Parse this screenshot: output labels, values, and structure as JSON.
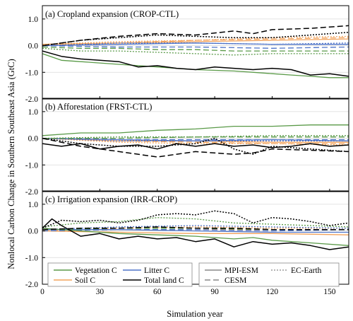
{
  "colors": {
    "Vegetation C": "#5a9a48",
    "Soil C": "#f2a35c",
    "Litter C": "#4f74c8",
    "Total land C": "#000000",
    "grid": "#d9d9d9"
  },
  "chart_data": {
    "type": "line",
    "ylabel": "Nonlocal Carbon Change in Southern Southeast Asia (GtC)",
    "xlabel": "Simulation year",
    "xlim": [
      0,
      160
    ],
    "xticks": [
      "0",
      "30",
      "60",
      "90",
      "120",
      "150"
    ],
    "xtick_values": [
      0,
      30,
      60,
      90,
      120,
      150
    ],
    "ylim": [
      -2.0,
      1.5
    ],
    "yticks": [
      "-2.0",
      "-1.0",
      "0.0",
      "1.0"
    ],
    "ytick_values": [
      -2.0,
      -1.0,
      0.0,
      1.0
    ],
    "grid": "horizontal",
    "legend": {
      "variables": [
        "Vegetation C",
        "Soil C",
        "Litter C",
        "Total land C"
      ],
      "models": [
        {
          "name": "MPI-ESM",
          "style": "solid"
        },
        {
          "name": "EC-Earth",
          "style": "dotted"
        },
        {
          "name": "CESM",
          "style": "dashed"
        }
      ],
      "location": "bottom of panel (c)"
    },
    "panels": [
      {
        "title": "(a) Cropland expansion (CROP-CTL)",
        "series": [
          {
            "name": "Vegetation C",
            "model": "MPI-ESM",
            "x": [
              0,
              10,
              20,
              40,
              60,
              80,
              100,
              120,
              130,
              140,
              150,
              160
            ],
            "y": [
              -0.3,
              -0.55,
              -0.6,
              -0.7,
              -0.8,
              -0.9,
              -0.95,
              -1.05,
              -1.1,
              -1.15,
              -1.2,
              -1.2
            ]
          },
          {
            "name": "Vegetation C",
            "model": "EC-Earth",
            "x": [
              0,
              20,
              40,
              60,
              80,
              100,
              120,
              140,
              160
            ],
            "y": [
              -0.1,
              -0.2,
              -0.2,
              -0.25,
              -0.3,
              -0.35,
              -0.3,
              -0.3,
              -0.3
            ]
          },
          {
            "name": "Vegetation C",
            "model": "CESM",
            "x": [
              0,
              20,
              40,
              60,
              80,
              100,
              120,
              140,
              160
            ],
            "y": [
              -0.05,
              -0.1,
              -0.1,
              -0.15,
              -0.15,
              -0.2,
              -0.2,
              -0.2,
              -0.2
            ]
          },
          {
            "name": "Soil C",
            "model": "MPI-ESM",
            "x": [
              0,
              40,
              80,
              120,
              160
            ],
            "y": [
              0.05,
              0.1,
              0.15,
              0.2,
              0.25
            ]
          },
          {
            "name": "Soil C",
            "model": "EC-Earth",
            "x": [
              0,
              40,
              80,
              120,
              160
            ],
            "y": [
              0.05,
              0.15,
              0.2,
              0.3,
              0.35
            ]
          },
          {
            "name": "Soil C",
            "model": "CESM",
            "x": [
              0,
              40,
              80,
              120,
              160
            ],
            "y": [
              0.0,
              0.1,
              0.2,
              0.25,
              0.3
            ]
          },
          {
            "name": "Litter C",
            "model": "MPI-ESM",
            "x": [
              0,
              40,
              80,
              120,
              160
            ],
            "y": [
              0.0,
              0.05,
              0.1,
              0.05,
              0.05
            ]
          },
          {
            "name": "Litter C",
            "model": "EC-Earth",
            "x": [
              0,
              40,
              80,
              120,
              160
            ],
            "y": [
              0.0,
              0.1,
              0.1,
              0.05,
              0.1
            ]
          },
          {
            "name": "Litter C",
            "model": "CESM",
            "x": [
              0,
              40,
              80,
              120,
              160
            ],
            "y": [
              0.0,
              -0.05,
              -0.05,
              -0.1,
              -0.05
            ]
          },
          {
            "name": "Total land C",
            "model": "MPI-ESM",
            "x": [
              0,
              10,
              20,
              30,
              40,
              50,
              60,
              70,
              80,
              90,
              100,
              110,
              120,
              130,
              140,
              150,
              160
            ],
            "y": [
              -0.2,
              -0.4,
              -0.5,
              -0.55,
              -0.6,
              -0.8,
              -0.75,
              -0.85,
              -0.9,
              -0.8,
              -0.85,
              -0.9,
              -0.85,
              -0.9,
              -1.1,
              -1.05,
              -1.15
            ]
          },
          {
            "name": "Total land C",
            "model": "EC-Earth",
            "x": [
              0,
              20,
              40,
              60,
              80,
              100,
              120,
              140,
              160
            ],
            "y": [
              0.0,
              0.2,
              0.3,
              0.4,
              0.35,
              0.3,
              0.3,
              0.4,
              0.5
            ]
          },
          {
            "name": "Total land C",
            "model": "CESM",
            "x": [
              0,
              20,
              40,
              60,
              80,
              100,
              110,
              120,
              140,
              160
            ],
            "y": [
              0.0,
              0.2,
              0.35,
              0.45,
              0.4,
              0.55,
              0.45,
              0.6,
              0.65,
              0.75
            ]
          }
        ]
      },
      {
        "title": "(b) Afforestation (FRST-CTL)",
        "series": [
          {
            "name": "Vegetation C",
            "model": "MPI-ESM",
            "x": [
              0,
              20,
              40,
              60,
              80,
              100,
              120,
              140,
              160
            ],
            "y": [
              0.1,
              0.2,
              0.2,
              0.3,
              0.35,
              0.45,
              0.45,
              0.5,
              0.5
            ]
          },
          {
            "name": "Vegetation C",
            "model": "EC-Earth",
            "x": [
              0,
              40,
              80,
              120,
              160
            ],
            "y": [
              0.0,
              0.05,
              0.05,
              0.1,
              0.1
            ]
          },
          {
            "name": "Vegetation C",
            "model": "CESM",
            "x": [
              0,
              40,
              80,
              120,
              160
            ],
            "y": [
              0.0,
              0.0,
              0.05,
              0.05,
              0.05
            ]
          },
          {
            "name": "Soil C",
            "model": "MPI-ESM",
            "x": [
              0,
              40,
              80,
              120,
              160
            ],
            "y": [
              0.0,
              -0.1,
              -0.1,
              -0.15,
              -0.15
            ]
          },
          {
            "name": "Soil C",
            "model": "EC-Earth",
            "x": [
              0,
              40,
              80,
              120,
              160
            ],
            "y": [
              0.0,
              -0.15,
              -0.2,
              -0.2,
              -0.25
            ]
          },
          {
            "name": "Soil C",
            "model": "CESM",
            "x": [
              0,
              40,
              80,
              120,
              160
            ],
            "y": [
              0.0,
              -0.1,
              -0.15,
              -0.2,
              -0.2
            ]
          },
          {
            "name": "Litter C",
            "model": "MPI-ESM",
            "x": [
              0,
              40,
              80,
              120,
              160
            ],
            "y": [
              0.0,
              -0.05,
              -0.1,
              -0.05,
              -0.1
            ]
          },
          {
            "name": "Litter C",
            "model": "EC-Earth",
            "x": [
              0,
              40,
              80,
              120,
              160
            ],
            "y": [
              0.0,
              -0.1,
              -0.1,
              -0.1,
              -0.1
            ]
          },
          {
            "name": "Litter C",
            "model": "CESM",
            "x": [
              0,
              40,
              80,
              120,
              160
            ],
            "y": [
              0.0,
              -0.05,
              -0.05,
              -0.05,
              -0.05
            ]
          },
          {
            "name": "Total land C",
            "model": "MPI-ESM",
            "x": [
              0,
              10,
              20,
              30,
              40,
              50,
              60,
              70,
              80,
              90,
              100,
              110,
              120,
              130,
              140,
              150,
              160
            ],
            "y": [
              -0.2,
              -0.3,
              -0.2,
              -0.4,
              -0.3,
              -0.25,
              -0.4,
              -0.2,
              -0.3,
              -0.2,
              -0.3,
              -0.25,
              -0.35,
              -0.3,
              -0.2,
              -0.3,
              -0.25
            ]
          },
          {
            "name": "Total land C",
            "model": "EC-Earth",
            "x": [
              0,
              20,
              40,
              60,
              80,
              90,
              100,
              110,
              120,
              140,
              160
            ],
            "y": [
              0.0,
              -0.2,
              -0.3,
              -0.3,
              -0.2,
              0.0,
              -0.4,
              -0.6,
              -0.3,
              -0.4,
              -0.5
            ]
          },
          {
            "name": "Total land C",
            "model": "CESM",
            "x": [
              0,
              20,
              40,
              60,
              80,
              100,
              110,
              120,
              140,
              160
            ],
            "y": [
              0.0,
              -0.3,
              -0.5,
              -0.7,
              -0.5,
              -0.6,
              -0.55,
              -0.4,
              -0.45,
              -0.5
            ]
          }
        ]
      },
      {
        "title": "(c) Irrigation expansion (IRR-CROP)",
        "series": [
          {
            "name": "Vegetation C",
            "model": "MPI-ESM",
            "x": [
              0,
              20,
              40,
              60,
              80,
              100,
              110,
              120,
              140,
              160
            ],
            "y": [
              0.1,
              0.0,
              -0.1,
              -0.15,
              -0.2,
              -0.3,
              -0.25,
              -0.35,
              -0.45,
              -0.55
            ]
          },
          {
            "name": "Vegetation C",
            "model": "EC-Earth",
            "x": [
              0,
              20,
              40,
              60,
              80,
              100,
              120,
              140,
              160
            ],
            "y": [
              0.15,
              0.3,
              0.35,
              0.5,
              0.45,
              0.3,
              0.25,
              0.2,
              0.15
            ]
          },
          {
            "name": "Vegetation C",
            "model": "CESM",
            "x": [
              0,
              40,
              80,
              120,
              160
            ],
            "y": [
              0.05,
              0.1,
              0.1,
              0.05,
              0.05
            ]
          },
          {
            "name": "Soil C",
            "model": "MPI-ESM",
            "x": [
              0,
              40,
              80,
              120,
              160
            ],
            "y": [
              0.0,
              -0.05,
              -0.1,
              -0.1,
              -0.15
            ]
          },
          {
            "name": "Soil C",
            "model": "EC-Earth",
            "x": [
              0,
              40,
              80,
              120,
              160
            ],
            "y": [
              0.0,
              0.1,
              0.15,
              0.1,
              0.1
            ]
          },
          {
            "name": "Soil C",
            "model": "CESM",
            "x": [
              0,
              40,
              80,
              120,
              160
            ],
            "y": [
              0.0,
              0.05,
              0.05,
              0.05,
              0.05
            ]
          },
          {
            "name": "Litter C",
            "model": "MPI-ESM",
            "x": [
              0,
              40,
              80,
              120,
              160
            ],
            "y": [
              0.05,
              0.05,
              0.0,
              -0.05,
              -0.05
            ]
          },
          {
            "name": "Litter C",
            "model": "EC-Earth",
            "x": [
              0,
              40,
              80,
              120,
              160
            ],
            "y": [
              0.05,
              0.15,
              0.2,
              0.15,
              0.1
            ]
          },
          {
            "name": "Litter C",
            "model": "CESM",
            "x": [
              0,
              40,
              80,
              120,
              160
            ],
            "y": [
              0.0,
              0.05,
              0.05,
              0.0,
              0.05
            ]
          },
          {
            "name": "Total land C",
            "model": "MPI-ESM",
            "x": [
              0,
              5,
              10,
              20,
              30,
              40,
              50,
              60,
              70,
              80,
              90,
              100,
              110,
              120,
              130,
              140,
              150,
              160
            ],
            "y": [
              0.1,
              0.45,
              0.2,
              -0.2,
              -0.1,
              -0.3,
              -0.2,
              -0.3,
              -0.25,
              -0.4,
              -0.3,
              -0.6,
              -0.4,
              -0.5,
              -0.45,
              -0.55,
              -0.7,
              -0.6
            ]
          },
          {
            "name": "Total land C",
            "model": "EC-Earth",
            "x": [
              0,
              10,
              20,
              30,
              40,
              50,
              60,
              70,
              80,
              90,
              100,
              110,
              120,
              130,
              140,
              150,
              160
            ],
            "y": [
              0.1,
              0.4,
              0.35,
              0.4,
              0.3,
              0.4,
              0.6,
              0.65,
              0.6,
              0.75,
              0.65,
              0.3,
              0.5,
              0.45,
              0.35,
              0.2,
              0.3
            ]
          },
          {
            "name": "Total land C",
            "model": "CESM",
            "x": [
              0,
              20,
              40,
              60,
              80,
              100,
              120,
              140,
              160
            ],
            "y": [
              0.05,
              0.1,
              0.1,
              0.15,
              0.1,
              0.1,
              0.05,
              0.05,
              0.05
            ]
          }
        ]
      }
    ]
  }
}
